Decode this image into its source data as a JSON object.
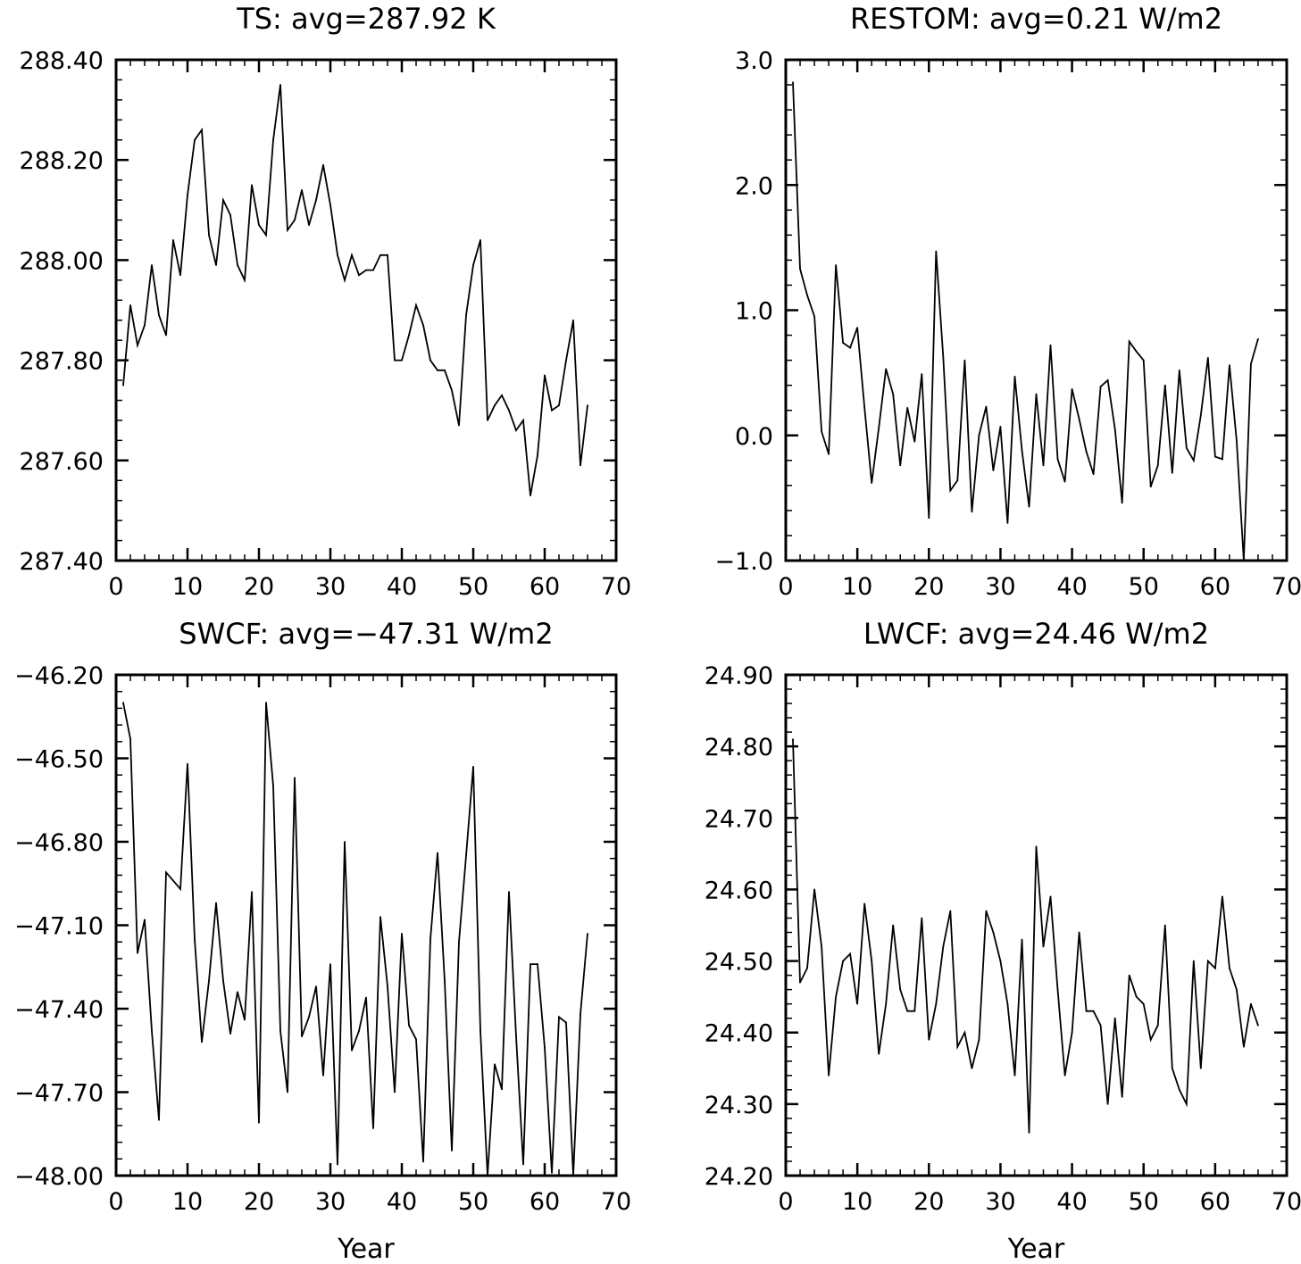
{
  "chart_data": [
    {
      "type": "line",
      "title": "TS: avg=287.92 K",
      "xlabel": "",
      "ylabel": "",
      "xlim": [
        0,
        70
      ],
      "ylim": [
        287.4,
        288.4
      ],
      "xticks": [
        "0",
        "10",
        "20",
        "30",
        "40",
        "50",
        "60",
        "70"
      ],
      "yticks": [
        "287.40",
        "287.60",
        "287.80",
        "288.00",
        "288.20",
        "288.40"
      ],
      "series": [
        {
          "x": [
            1,
            2,
            3,
            4,
            5,
            6,
            7,
            8,
            9,
            10,
            11,
            12,
            13,
            14,
            15,
            16,
            17,
            18,
            19,
            20,
            21,
            22,
            23,
            24,
            25,
            26,
            27,
            28,
            29,
            30,
            31,
            32,
            33,
            34,
            35,
            36,
            37,
            38,
            39,
            40,
            41,
            42,
            43,
            44,
            45,
            46,
            47,
            48,
            49,
            50,
            51,
            52,
            53,
            54,
            55,
            56,
            57,
            58,
            59,
            60,
            61,
            62,
            63,
            64,
            65,
            66
          ],
          "values": [
            287.75,
            287.91,
            287.83,
            287.87,
            287.99,
            287.89,
            287.85,
            288.04,
            287.97,
            288.13,
            288.24,
            288.26,
            288.05,
            287.99,
            288.12,
            288.09,
            287.99,
            287.96,
            288.15,
            288.07,
            288.05,
            288.24,
            288.35,
            288.06,
            288.08,
            288.14,
            288.07,
            288.12,
            288.19,
            288.11,
            288.01,
            287.96,
            288.01,
            287.97,
            287.98,
            287.98,
            288.01,
            288.01,
            287.8,
            287.8,
            287.85,
            287.91,
            287.87,
            287.8,
            287.78,
            287.78,
            287.74,
            287.67,
            287.89,
            287.99,
            288.04,
            287.68,
            287.71,
            287.73,
            287.7,
            287.66,
            287.68,
            287.53,
            287.61,
            287.77,
            287.7,
            287.71,
            287.8,
            287.88,
            287.59,
            287.71
          ]
        }
      ]
    },
    {
      "type": "line",
      "title": "RESTOM: avg=0.21 W/m2",
      "xlabel": "",
      "ylabel": "",
      "xlim": [
        0,
        70
      ],
      "ylim": [
        -1.0,
        3.0
      ],
      "xticks": [
        "0",
        "10",
        "20",
        "30",
        "40",
        "50",
        "60",
        "70"
      ],
      "yticks": [
        "−1.0",
        "0.0",
        "1.0",
        "2.0",
        "3.0"
      ],
      "series": [
        {
          "x": [
            1,
            2,
            3,
            4,
            5,
            6,
            7,
            8,
            9,
            10,
            11,
            12,
            13,
            14,
            15,
            16,
            17,
            18,
            19,
            20,
            21,
            22,
            23,
            24,
            25,
            26,
            27,
            28,
            29,
            30,
            31,
            32,
            33,
            34,
            35,
            36,
            37,
            38,
            39,
            40,
            41,
            42,
            43,
            44,
            45,
            46,
            47,
            48,
            49,
            50,
            51,
            52,
            53,
            54,
            55,
            56,
            57,
            58,
            59,
            60,
            61,
            62,
            63,
            64,
            65,
            66
          ],
          "values": [
            2.82,
            1.33,
            1.12,
            0.95,
            0.03,
            -0.15,
            1.36,
            0.74,
            0.7,
            0.86,
            0.22,
            -0.38,
            0.06,
            0.53,
            0.33,
            -0.24,
            0.22,
            -0.05,
            0.49,
            -0.66,
            1.47,
            0.63,
            -0.44,
            -0.36,
            0.6,
            -0.61,
            0.0,
            0.23,
            -0.28,
            0.07,
            -0.7,
            0.47,
            -0.12,
            -0.57,
            0.33,
            -0.24,
            0.72,
            -0.19,
            -0.37,
            0.37,
            0.13,
            -0.13,
            -0.31,
            0.39,
            0.44,
            0.05,
            -0.54,
            0.75,
            0.67,
            0.6,
            -0.41,
            -0.24,
            0.4,
            -0.3,
            0.52,
            -0.1,
            -0.2,
            0.16,
            0.62,
            -0.17,
            -0.19,
            0.56,
            -0.04,
            -1.0,
            0.57,
            0.77
          ]
        }
      ]
    },
    {
      "type": "line",
      "title": "SWCF: avg=−47.31 W/m2",
      "xlabel": "Year",
      "ylabel": "",
      "xlim": [
        0,
        70
      ],
      "ylim": [
        -48.0,
        -46.2
      ],
      "xticks": [
        "0",
        "10",
        "20",
        "30",
        "40",
        "50",
        "60",
        "70"
      ],
      "yticks": [
        "−48.00",
        "−47.70",
        "−47.40",
        "−47.10",
        "−46.80",
        "−46.50",
        "−46.20"
      ],
      "series": [
        {
          "x": [
            1,
            2,
            3,
            4,
            5,
            6,
            7,
            8,
            9,
            10,
            11,
            12,
            13,
            14,
            15,
            16,
            17,
            18,
            19,
            20,
            21,
            22,
            23,
            24,
            25,
            26,
            27,
            28,
            29,
            30,
            31,
            32,
            33,
            34,
            35,
            36,
            37,
            38,
            39,
            40,
            41,
            42,
            43,
            44,
            45,
            46,
            47,
            48,
            49,
            50,
            51,
            52,
            53,
            54,
            55,
            56,
            57,
            58,
            59,
            60,
            61,
            62,
            63,
            64,
            65,
            66
          ],
          "values": [
            -46.3,
            -46.43,
            -47.2,
            -47.08,
            -47.48,
            -47.8,
            -46.91,
            -46.94,
            -46.97,
            -46.52,
            -47.15,
            -47.52,
            -47.3,
            -47.02,
            -47.3,
            -47.49,
            -47.34,
            -47.44,
            -46.98,
            -47.81,
            -46.3,
            -46.6,
            -47.48,
            -47.7,
            -46.57,
            -47.5,
            -47.43,
            -47.32,
            -47.64,
            -47.24,
            -47.96,
            -46.8,
            -47.55,
            -47.48,
            -47.36,
            -47.83,
            -47.07,
            -47.32,
            -47.7,
            -47.13,
            -47.46,
            -47.51,
            -47.95,
            -47.15,
            -46.84,
            -47.3,
            -47.91,
            -47.16,
            -46.85,
            -46.53,
            -47.48,
            -48.0,
            -47.6,
            -47.69,
            -46.98,
            -47.5,
            -47.96,
            -47.24,
            -47.24,
            -47.54,
            -47.99,
            -47.43,
            -47.45,
            -48.0,
            -47.42,
            -47.13
          ]
        }
      ]
    },
    {
      "type": "line",
      "title": "LWCF: avg=24.46 W/m2",
      "xlabel": "Year",
      "ylabel": "",
      "xlim": [
        0,
        70
      ],
      "ylim": [
        24.2,
        24.9
      ],
      "xticks": [
        "0",
        "10",
        "20",
        "30",
        "40",
        "50",
        "60",
        "70"
      ],
      "yticks": [
        "24.20",
        "24.30",
        "24.40",
        "24.50",
        "24.60",
        "24.70",
        "24.80",
        "24.90"
      ],
      "series": [
        {
          "x": [
            1,
            2,
            3,
            4,
            5,
            6,
            7,
            8,
            9,
            10,
            11,
            12,
            13,
            14,
            15,
            16,
            17,
            18,
            19,
            20,
            21,
            22,
            23,
            24,
            25,
            26,
            27,
            28,
            29,
            30,
            31,
            32,
            33,
            34,
            35,
            36,
            37,
            38,
            39,
            40,
            41,
            42,
            43,
            44,
            45,
            46,
            47,
            48,
            49,
            50,
            51,
            52,
            53,
            54,
            55,
            56,
            57,
            58,
            59,
            60,
            61,
            62,
            63,
            64,
            65,
            66
          ],
          "values": [
            24.81,
            24.47,
            24.49,
            24.6,
            24.52,
            24.34,
            24.45,
            24.5,
            24.51,
            24.44,
            24.58,
            24.5,
            24.37,
            24.44,
            24.55,
            24.46,
            24.43,
            24.43,
            24.56,
            24.39,
            24.44,
            24.52,
            24.57,
            24.38,
            24.4,
            24.35,
            24.39,
            24.57,
            24.54,
            24.5,
            24.44,
            24.34,
            24.53,
            24.26,
            24.66,
            24.52,
            24.59,
            24.46,
            24.34,
            24.4,
            24.54,
            24.43,
            24.43,
            24.41,
            24.3,
            24.42,
            24.31,
            24.48,
            24.45,
            24.44,
            24.39,
            24.41,
            24.55,
            24.35,
            24.32,
            24.3,
            24.5,
            24.35,
            24.5,
            24.49,
            24.59,
            24.49,
            24.46,
            24.38,
            24.44,
            24.41
          ]
        }
      ]
    }
  ]
}
